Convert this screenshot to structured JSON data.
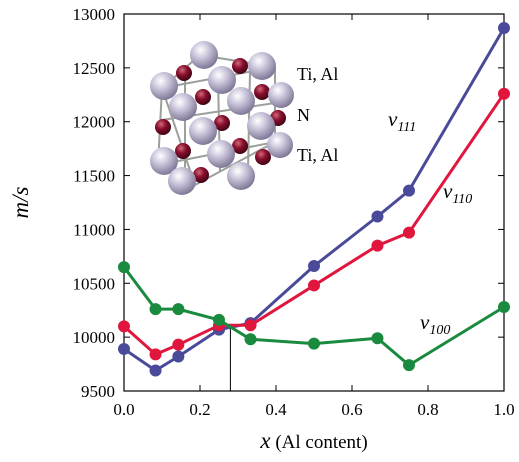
{
  "chart_data": {
    "type": "line",
    "xlabel_var": "x",
    "xlabel_text": "(Al content)",
    "ylabel": "m/s",
    "xlim": [
      0,
      1
    ],
    "ylim": [
      9500,
      13000
    ],
    "xticks": [
      "0.0",
      "0.2",
      "0.4",
      "0.6",
      "0.8",
      "1.0"
    ],
    "xtick_values": [
      0,
      0.2,
      0.4,
      0.6,
      0.8,
      1.0
    ],
    "yticks": [
      "9500",
      "10000",
      "10500",
      "11000",
      "11500",
      "12000",
      "12500",
      "13000"
    ],
    "ytick_values": [
      9500,
      10000,
      10500,
      11000,
      11500,
      12000,
      12500,
      13000
    ],
    "grid": false,
    "series": [
      {
        "name": "v111",
        "label_main": "v",
        "label_sub": "111",
        "color": "#4a4a9a",
        "x": [
          0,
          0.083,
          0.143,
          0.25,
          0.333,
          0.5,
          0.667,
          0.75,
          1.0
        ],
        "y": [
          9890,
          9690,
          9820,
          10070,
          10130,
          10660,
          11120,
          11360,
          12870
        ]
      },
      {
        "name": "v110",
        "label_main": "v",
        "label_sub": "110",
        "color": "#e0163c",
        "x": [
          0,
          0.083,
          0.143,
          0.25,
          0.333,
          0.5,
          0.667,
          0.75,
          1.0
        ],
        "y": [
          10100,
          9840,
          9930,
          10110,
          10110,
          10480,
          10850,
          10970,
          12260
        ]
      },
      {
        "name": "v100",
        "label_main": "v",
        "label_sub": "100",
        "color": "#1a8a3e",
        "x": [
          0,
          0.083,
          0.143,
          0.25,
          0.333,
          0.5,
          0.667,
          0.75,
          1.0
        ],
        "y": [
          10650,
          10260,
          10260,
          10160,
          9980,
          9940,
          9990,
          9740,
          10280
        ]
      }
    ],
    "crossing_marker_x": 0.28,
    "crossing_marker_y": 10090,
    "inset": {
      "labels": [
        "Ti, Al",
        "N",
        "Ti, Al"
      ]
    }
  }
}
